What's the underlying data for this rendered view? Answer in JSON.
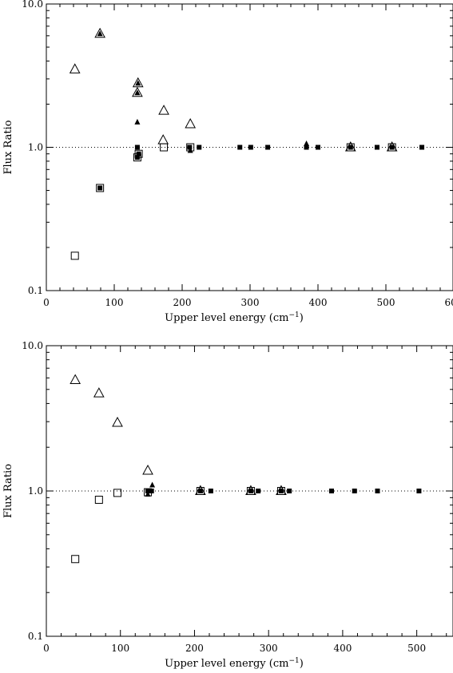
{
  "chart_data": [
    {
      "type": "scatter",
      "title": "",
      "xlabel": "Upper level energy (cm",
      "xlabel_sup": "−1",
      "xlabel_end": ")",
      "ylabel": "Flux Ratio",
      "xlim": [
        0,
        600
      ],
      "ylim": [
        0.1,
        10.0
      ],
      "yscale": "log",
      "grid": false,
      "reference_line": 1.0,
      "x_ticks": [
        0,
        100,
        200,
        300,
        400,
        500,
        600
      ],
      "x_tick_labels": [
        "0",
        "100",
        "200",
        "300",
        "400",
        "500",
        "600"
      ],
      "y_ticks": [
        0.1,
        1.0,
        10.0
      ],
      "y_tick_labels": [
        "0.1",
        "1.0",
        "10.0"
      ],
      "series": [
        {
          "marker": "open-triangle",
          "points": [
            [
              42,
              3.5
            ],
            [
              79,
              6.2
            ],
            [
              135,
              2.8
            ],
            [
              134,
              2.4
            ],
            [
              173,
              1.8
            ],
            [
              172,
              1.12
            ],
            [
              212,
              1.45
            ],
            [
              448,
              1.0
            ],
            [
              509,
              1.0
            ]
          ]
        },
        {
          "marker": "filled-triangle",
          "points": [
            [
              79,
              6.2
            ],
            [
              135,
              2.8
            ],
            [
              134,
              2.4
            ],
            [
              134,
              1.5
            ],
            [
              212,
              0.95
            ],
            [
              383,
              1.06
            ]
          ]
        },
        {
          "marker": "open-square",
          "points": [
            [
              42,
              0.175
            ],
            [
              79,
              0.52
            ],
            [
              134,
              0.85
            ],
            [
              136,
              0.9
            ],
            [
              173,
              1.0
            ],
            [
              212,
              1.0
            ],
            [
              448,
              1.0
            ],
            [
              509,
              1.0
            ]
          ]
        },
        {
          "marker": "filled-square",
          "points": [
            [
              79,
              0.52
            ],
            [
              134,
              1.0
            ],
            [
              134,
              0.85
            ],
            [
              136,
              0.9
            ],
            [
              211,
              1.0
            ],
            [
              225,
              1.0
            ],
            [
              285,
              1.0
            ],
            [
              301,
              1.0
            ],
            [
              326,
              1.0
            ],
            [
              383,
              1.0
            ],
            [
              400,
              1.0
            ],
            [
              448,
              1.0
            ],
            [
              487,
              1.0
            ],
            [
              509,
              1.0
            ],
            [
              553,
              1.0
            ]
          ]
        }
      ]
    },
    {
      "type": "scatter",
      "title": "",
      "xlabel": "Upper level energy (cm",
      "xlabel_sup": "−1",
      "xlabel_end": ")",
      "ylabel": "Flux Ratio",
      "xlim": [
        0,
        550
      ],
      "ylim": [
        0.1,
        10.0
      ],
      "yscale": "log",
      "grid": false,
      "reference_line": 1.0,
      "x_ticks": [
        0,
        100,
        200,
        300,
        400,
        500
      ],
      "x_tick_labels": [
        "0",
        "100",
        "200",
        "300",
        "400",
        "500"
      ],
      "y_ticks": [
        0.1,
        1.0,
        10.0
      ],
      "y_tick_labels": [
        "0.1",
        "1.0",
        "10.0"
      ],
      "series": [
        {
          "marker": "open-triangle",
          "points": [
            [
              39,
              5.8
            ],
            [
              71,
              4.7
            ],
            [
              96,
              2.95
            ],
            [
              137,
              1.38
            ],
            [
              208,
              1.0
            ],
            [
              276,
              1.0
            ],
            [
              317,
              1.0
            ]
          ]
        },
        {
          "marker": "filled-triangle",
          "points": [
            [
              137,
              0.95
            ],
            [
              143,
              1.1
            ],
            [
              208,
              1.0
            ],
            [
              276,
              1.0
            ],
            [
              317,
              1.0
            ]
          ]
        },
        {
          "marker": "open-square",
          "points": [
            [
              39,
              0.34
            ],
            [
              71,
              0.87
            ],
            [
              96,
              0.97
            ],
            [
              137,
              0.98
            ],
            [
              208,
              1.0
            ],
            [
              276,
              1.0
            ],
            [
              317,
              1.0
            ]
          ]
        },
        {
          "marker": "filled-square",
          "points": [
            [
              137,
              1.0
            ],
            [
              142,
              1.0
            ],
            [
              208,
              1.0
            ],
            [
              222,
              1.0
            ],
            [
              276,
              1.0
            ],
            [
              286,
              1.0
            ],
            [
              317,
              1.0
            ],
            [
              328,
              1.0
            ],
            [
              385,
              1.0
            ],
            [
              416,
              1.0
            ],
            [
              447,
              1.0
            ],
            [
              503,
              1.0
            ]
          ]
        }
      ]
    }
  ]
}
